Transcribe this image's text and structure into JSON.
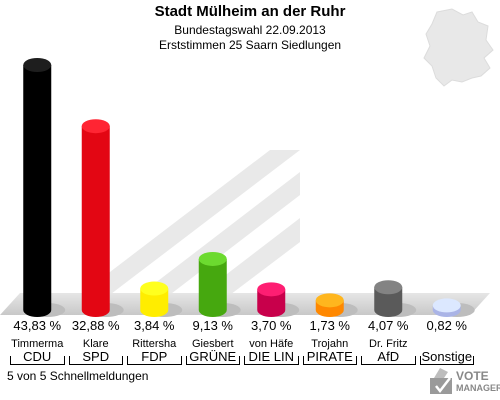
{
  "header": {
    "title": "Stadt Mülheim an der Ruhr",
    "subtitle": "Bundestagswahl 22.09.2013",
    "subtitle2": "Erststimmen 25 Saarn Siedlungen"
  },
  "footer": {
    "text": "5 von 5 Schnellmeldungen"
  },
  "logo": {
    "line1": "VOTE",
    "line2": "MANAGER"
  },
  "chart_data": {
    "type": "bar",
    "title": "Stadt Mülheim an der Ruhr",
    "categories": [
      "CDU",
      "SPD",
      "FDP",
      "GRÜNE",
      "DIE LIN",
      "PIRATE",
      "AfD",
      "Sonstige"
    ],
    "candidates": [
      "Timmerma",
      "Klare",
      "Rittersha",
      "Giesbert",
      "von Häfe",
      "Trojahn",
      "Dr. Fritz",
      ""
    ],
    "values": [
      43.83,
      32.88,
      3.84,
      9.13,
      3.7,
      1.73,
      4.07,
      0.82
    ],
    "labels": [
      "43,83 %",
      "32,88 %",
      "3,84 %",
      "9,13 %",
      "3,70 %",
      "1,73 %",
      "4,07 %",
      "0,82 %"
    ],
    "colors": [
      "#000000",
      "#e30613",
      "#ffed00",
      "#46a80f",
      "#c8004b",
      "#ff8800",
      "#5a5a5a",
      "#aab4e6"
    ],
    "ylim": [
      0,
      43.83
    ],
    "grid": false
  }
}
